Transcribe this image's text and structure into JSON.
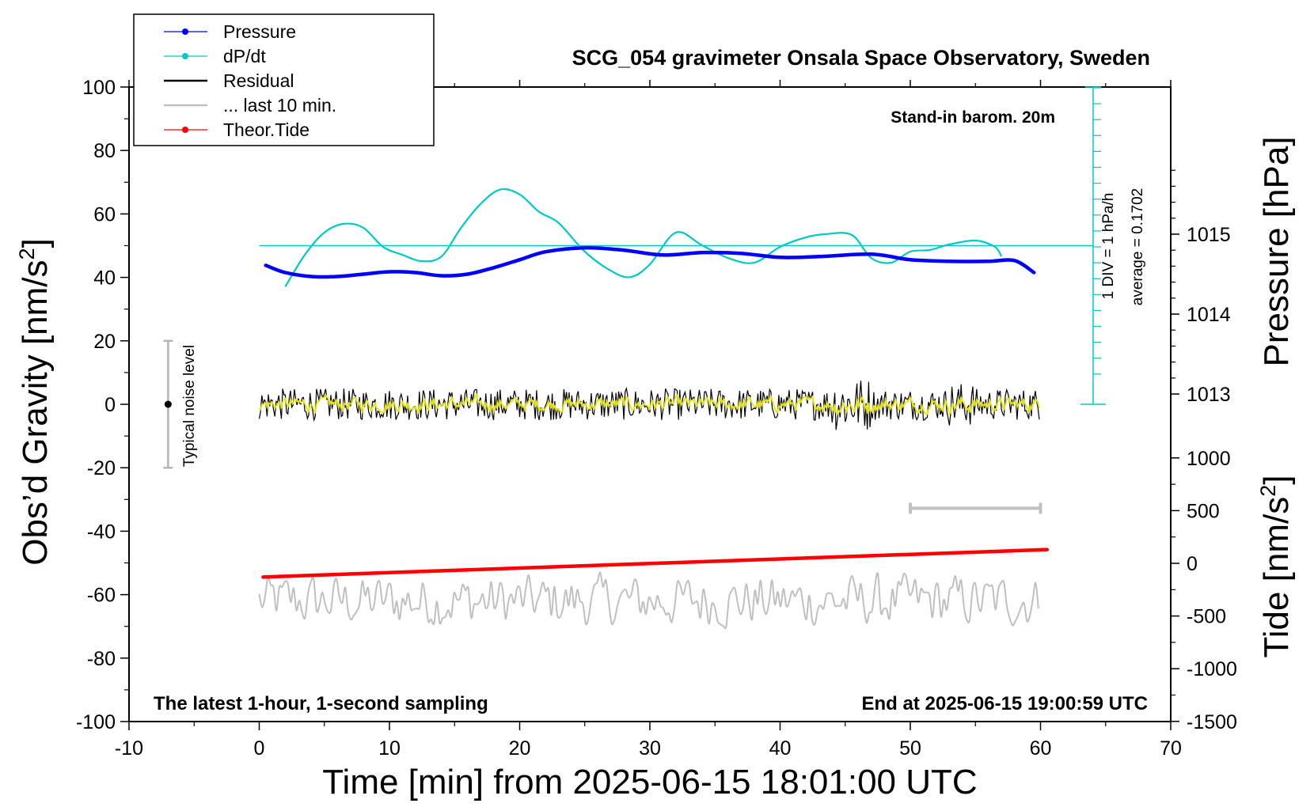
{
  "chart_data": {
    "type": "line",
    "title": "SCG_054 gravimeter Onsala Space Observatory, Sweden",
    "xlabel": "Time [min] from 2025-06-15 18:01:00 UTC",
    "ylabel_left": "Obs’d Gravity [nm/s",
    "ylabel_left_sup": "2",
    "ylabel_left_close": "]",
    "ylabel_pressure": "Pressure [hPa]",
    "ylabel_tide": "Tide [nm/s",
    "ylabel_tide_sup": "2",
    "ylabel_tide_close": "]",
    "xlim": [
      -10,
      70
    ],
    "ylim": [
      -100,
      100
    ],
    "x_ticks": [
      "-10",
      "0",
      "10",
      "20",
      "30",
      "40",
      "50",
      "60",
      "70"
    ],
    "y_ticks": [
      "100",
      "80",
      "60",
      "40",
      "20",
      "0",
      "-20",
      "-40",
      "-60",
      "-80",
      "-100"
    ],
    "pressure_ticks": [
      "1015",
      "1014",
      "1013"
    ],
    "pressure_tick_values": [
      1015,
      1014,
      1013
    ],
    "tide_ticks": [
      "1000",
      "500",
      "0",
      "-500",
      "-1000",
      "-1500"
    ],
    "tide_tick_values": [
      1000,
      500,
      0,
      -500,
      -1000,
      -1500
    ],
    "annotations": {
      "barometer": "Stand-in barom. 20m",
      "div_label": "1 DIV = 1 hPa/h",
      "average_label": "average = 0.1702",
      "noise_label": "Typical noise level",
      "bottom_left": "The latest 1-hour, 1-second sampling",
      "bottom_right": "End at 2025-06-15 19:00:59 UTC"
    },
    "legend": [
      {
        "name": "Pressure",
        "color": "#0000ff",
        "marker": true
      },
      {
        "name": "dP/dt",
        "color": "#00c8c8",
        "marker": true
      },
      {
        "name": "Residual",
        "color": "#000000",
        "marker": false
      },
      {
        "name": "... last 10 min.",
        "color": "#c0c0c0",
        "marker": false
      },
      {
        "name": "Theor.Tide",
        "color": "#ff0000",
        "marker": true
      }
    ],
    "series": [
      {
        "name": "Pressure",
        "axis": "pressure_hPa",
        "x": [
          0.5,
          2,
          4,
          6,
          8,
          10,
          12,
          14,
          16,
          18,
          20,
          22,
          25,
          28,
          31,
          34,
          37,
          40,
          43,
          47,
          50,
          53,
          56,
          58,
          59.5
        ],
        "values": [
          1014.61,
          1014.52,
          1014.47,
          1014.47,
          1014.5,
          1014.53,
          1014.52,
          1014.48,
          1014.5,
          1014.58,
          1014.68,
          1014.78,
          1014.83,
          1014.8,
          1014.74,
          1014.77,
          1014.76,
          1014.71,
          1014.72,
          1014.75,
          1014.68,
          1014.66,
          1014.66,
          1014.67,
          1014.52
        ]
      },
      {
        "name": "dP/dt",
        "axis": "dPdt_hPa_per_h",
        "x": [
          2,
          3.5,
          5,
          6.5,
          8,
          9.5,
          11,
          12.5,
          14,
          15.5,
          17,
          18.5,
          20,
          21.5,
          23,
          25,
          27,
          28.5,
          30,
          32,
          34,
          36,
          38,
          40,
          42,
          43.5,
          45.5,
          47,
          48.5,
          50,
          51.5,
          53,
          55,
          56.5,
          57
        ],
        "values": [
          -2.5,
          -0.5,
          0.9,
          1.45,
          1.2,
          0.0,
          -0.5,
          -0.9,
          -0.6,
          1.2,
          2.7,
          3.6,
          3.3,
          2.2,
          1.5,
          -0.3,
          -1.5,
          -1.9,
          -1.1,
          0.9,
          0.1,
          -0.7,
          -1.0,
          0.0,
          0.6,
          0.8,
          0.75,
          -0.7,
          -1.0,
          -0.3,
          -0.2,
          0.15,
          0.4,
          0.0,
          -0.6
        ]
      },
      {
        "name": "Residual",
        "axis": "gravity_nm_s2",
        "x_range": [
          0,
          60
        ],
        "mean": 0,
        "typical_amplitude": 5
      },
      {
        "name": "... last 10 min.",
        "axis": "gravity_nm_s2",
        "x_range": [
          0,
          60
        ],
        "offset": -62,
        "typical_amplitude": 5
      },
      {
        "name": "Theor.Tide",
        "axis": "tide_nm_s2",
        "x": [
          0.3,
          60.5
        ],
        "values": [
          -130,
          130
        ]
      }
    ],
    "noise_bar": {
      "x": -7,
      "y": 0,
      "low": -20,
      "high": 20
    },
    "dPdt_scale": {
      "zero_line_at_gravity": 50,
      "div_hPa_per_h": 1,
      "average": 0.1702
    },
    "gray_scale_bar": {
      "x_start": 50,
      "x_end": 60,
      "tide_value": 500
    }
  },
  "colors": {
    "pressure": "#0000ff",
    "dpdt": "#00c8c8",
    "residual": "#000000",
    "residual_smooth": "#e4e400",
    "last10": "#c0c0c0",
    "tide": "#ff0000",
    "noise_bar": "#b4b4b4"
  }
}
